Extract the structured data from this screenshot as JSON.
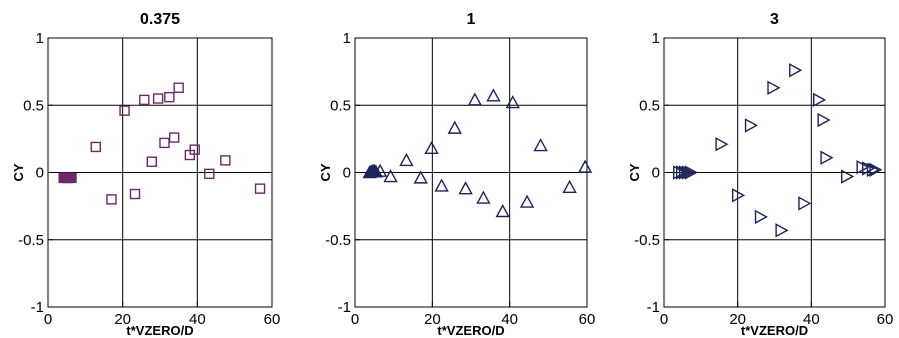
{
  "chart_data": [
    {
      "type": "scatter",
      "title": "0.375",
      "xlabel": "t*VZERO/D",
      "ylabel": "CY",
      "xlim": [
        0,
        60
      ],
      "ylim": [
        -1,
        1
      ],
      "xticks": [
        "0",
        "20",
        "40",
        "60"
      ],
      "yticks": [
        "1",
        "0.5",
        "0",
        "-0.5",
        "-1"
      ],
      "grid": true,
      "marker": "square",
      "color": "#6b2a6b",
      "filled_points": [
        [
          4.2,
          -0.04
        ],
        [
          4.6,
          -0.04
        ],
        [
          5.0,
          -0.04
        ],
        [
          5.4,
          -0.04
        ],
        [
          5.8,
          -0.04
        ],
        [
          6.3,
          -0.04
        ]
      ],
      "points": [
        [
          12.8,
          0.19
        ],
        [
          17.0,
          -0.2
        ],
        [
          20.5,
          0.46
        ],
        [
          23.3,
          -0.16
        ],
        [
          25.8,
          0.54
        ],
        [
          27.8,
          0.08
        ],
        [
          29.5,
          0.55
        ],
        [
          31.2,
          0.22
        ],
        [
          32.5,
          0.56
        ],
        [
          33.8,
          0.26
        ],
        [
          35.0,
          0.63
        ],
        [
          38.0,
          0.13
        ],
        [
          39.3,
          0.17
        ],
        [
          43.2,
          -0.01
        ],
        [
          47.5,
          0.09
        ],
        [
          56.8,
          -0.12
        ]
      ]
    },
    {
      "type": "scatter",
      "title": "1",
      "xlabel": "t*VZERO/D",
      "ylabel": "CY",
      "xlim": [
        0,
        60
      ],
      "ylim": [
        -1,
        1
      ],
      "xticks": [
        "0",
        "20",
        "40",
        "60"
      ],
      "yticks": [
        "1",
        "0.5",
        "0",
        "-0.5",
        "-1"
      ],
      "grid": true,
      "marker": "triangle-up",
      "color": "#1c2459",
      "filled_points": [
        [
          3.8,
          0.0
        ],
        [
          4.2,
          0.005
        ],
        [
          4.6,
          0.01
        ],
        [
          5.0,
          0.01
        ],
        [
          5.4,
          0.005
        ]
      ],
      "points": [
        [
          6.5,
          0.01
        ],
        [
          9.2,
          -0.03
        ],
        [
          13.3,
          0.09
        ],
        [
          17.0,
          -0.04
        ],
        [
          19.8,
          0.18
        ],
        [
          22.4,
          -0.1
        ],
        [
          25.8,
          0.33
        ],
        [
          28.6,
          -0.12
        ],
        [
          31.0,
          0.54
        ],
        [
          33.2,
          -0.19
        ],
        [
          35.8,
          0.57
        ],
        [
          38.2,
          -0.29
        ],
        [
          40.8,
          0.52
        ],
        [
          44.5,
          -0.22
        ],
        [
          48.0,
          0.2
        ],
        [
          55.5,
          -0.11
        ],
        [
          59.5,
          0.04
        ]
      ]
    },
    {
      "type": "scatter",
      "title": "3",
      "xlabel": "t*VZERO/D",
      "ylabel": "CY",
      "xlim": [
        0,
        60
      ],
      "ylim": [
        -1,
        1
      ],
      "xticks": [
        "0",
        "20",
        "40",
        "60"
      ],
      "yticks": [
        "1",
        "0.5",
        "0",
        "-0.5",
        "-1"
      ],
      "grid": true,
      "marker": "triangle-right",
      "color": "#1c2459",
      "filled_points": [],
      "points": [
        [
          4.0,
          0.0
        ],
        [
          4.8,
          0.0
        ],
        [
          5.6,
          0.0
        ],
        [
          6.4,
          0.0
        ],
        [
          7.2,
          0.0
        ],
        [
          15.5,
          0.21
        ],
        [
          20.0,
          -0.17
        ],
        [
          23.5,
          0.35
        ],
        [
          26.2,
          -0.33
        ],
        [
          29.6,
          0.63
        ],
        [
          31.8,
          -0.43
        ],
        [
          35.5,
          0.76
        ],
        [
          38.0,
          -0.23
        ],
        [
          42.0,
          0.54
        ],
        [
          43.2,
          0.39
        ],
        [
          44.0,
          0.11
        ],
        [
          49.6,
          -0.03
        ],
        [
          53.8,
          0.04
        ],
        [
          55.3,
          0.03
        ],
        [
          56.6,
          0.02
        ],
        [
          57.3,
          0.02
        ]
      ]
    }
  ]
}
